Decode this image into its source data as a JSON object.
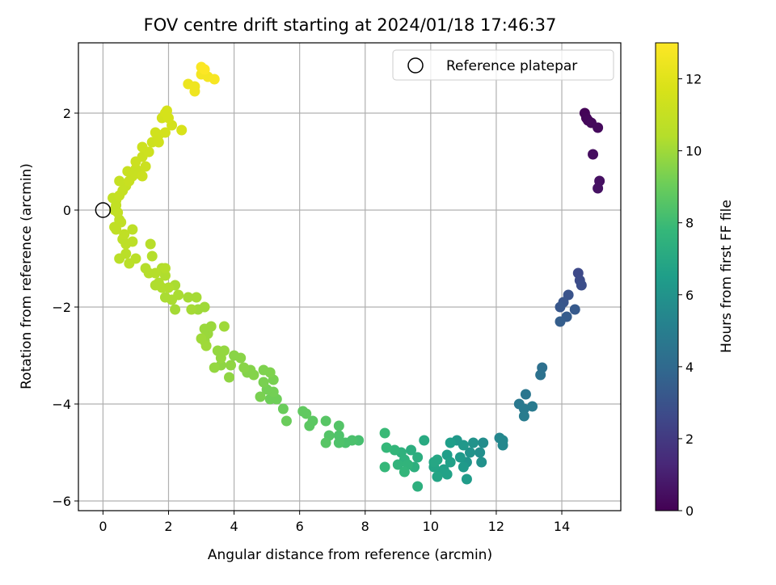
{
  "chart_data": {
    "type": "scatter",
    "title": "FOV centre drift starting at 2024/01/18 17:46:37",
    "xlabel": "Angular distance from reference (arcmin)",
    "ylabel": "Rotation from reference (arcmin)",
    "xlim": [
      -0.75,
      15.8
    ],
    "ylim": [
      -6.2,
      3.45
    ],
    "xticks": [
      0,
      2,
      4,
      6,
      8,
      10,
      12,
      14
    ],
    "yticks": [
      -6,
      -4,
      -2,
      0,
      2
    ],
    "xtick_labels": [
      "0",
      "2",
      "4",
      "6",
      "8",
      "10",
      "12",
      "14"
    ],
    "ytick_labels": [
      "−6",
      "−4",
      "−2",
      "0",
      "2"
    ],
    "grid": true,
    "legend": {
      "position": "top-right",
      "entries": [
        "Reference platepar"
      ]
    },
    "reference_marker": {
      "label": "Reference platepar",
      "x": 0,
      "y": 0,
      "marker": "open-circle"
    },
    "colorbar": {
      "label": "Hours from first FF file",
      "colormap": "viridis",
      "range": [
        0,
        13
      ],
      "ticks": [
        0,
        2,
        4,
        6,
        8,
        10,
        12
      ],
      "tick_labels": [
        "0",
        "2",
        "4",
        "6",
        "8",
        "10",
        "12"
      ]
    },
    "points": [
      {
        "x": 14.7,
        "y": 2.0,
        "t": 0.1
      },
      {
        "x": 14.75,
        "y": 1.9,
        "t": 0.15
      },
      {
        "x": 14.8,
        "y": 1.85,
        "t": 0.2
      },
      {
        "x": 14.9,
        "y": 1.8,
        "t": 0.25
      },
      {
        "x": 15.1,
        "y": 1.7,
        "t": 0.3
      },
      {
        "x": 14.95,
        "y": 1.15,
        "t": 0.4
      },
      {
        "x": 15.15,
        "y": 0.6,
        "t": 0.5
      },
      {
        "x": 15.1,
        "y": 0.45,
        "t": 0.55
      },
      {
        "x": 14.5,
        "y": -1.3,
        "t": 2.6
      },
      {
        "x": 14.55,
        "y": -1.45,
        "t": 2.7
      },
      {
        "x": 14.6,
        "y": -1.55,
        "t": 2.8
      },
      {
        "x": 14.2,
        "y": -1.75,
        "t": 3.0
      },
      {
        "x": 14.05,
        "y": -1.9,
        "t": 3.1
      },
      {
        "x": 13.95,
        "y": -2.0,
        "t": 3.2
      },
      {
        "x": 14.4,
        "y": -2.05,
        "t": 3.3
      },
      {
        "x": 14.15,
        "y": -2.2,
        "t": 3.4
      },
      {
        "x": 13.95,
        "y": -2.3,
        "t": 3.5
      },
      {
        "x": 13.4,
        "y": -3.25,
        "t": 4.3
      },
      {
        "x": 13.35,
        "y": -3.4,
        "t": 4.4
      },
      {
        "x": 12.9,
        "y": -3.8,
        "t": 4.6
      },
      {
        "x": 12.7,
        "y": -4.0,
        "t": 4.7
      },
      {
        "x": 12.85,
        "y": -4.1,
        "t": 4.8
      },
      {
        "x": 13.1,
        "y": -4.05,
        "t": 4.8
      },
      {
        "x": 12.85,
        "y": -4.25,
        "t": 4.9
      },
      {
        "x": 12.1,
        "y": -4.7,
        "t": 5.4
      },
      {
        "x": 12.2,
        "y": -4.75,
        "t": 5.5
      },
      {
        "x": 12.2,
        "y": -4.85,
        "t": 5.5
      },
      {
        "x": 11.6,
        "y": -4.8,
        "t": 5.7
      },
      {
        "x": 11.5,
        "y": -5.0,
        "t": 5.8
      },
      {
        "x": 11.55,
        "y": -5.2,
        "t": 5.9
      },
      {
        "x": 11.3,
        "y": -4.8,
        "t": 6.0
      },
      {
        "x": 11.2,
        "y": -5.0,
        "t": 6.0
      },
      {
        "x": 11.1,
        "y": -5.2,
        "t": 6.1
      },
      {
        "x": 10.8,
        "y": -4.75,
        "t": 6.2
      },
      {
        "x": 11.0,
        "y": -4.85,
        "t": 6.2
      },
      {
        "x": 10.9,
        "y": -5.1,
        "t": 6.3
      },
      {
        "x": 11.0,
        "y": -5.3,
        "t": 6.3
      },
      {
        "x": 11.1,
        "y": -5.55,
        "t": 6.4
      },
      {
        "x": 10.6,
        "y": -4.8,
        "t": 6.5
      },
      {
        "x": 10.5,
        "y": -5.05,
        "t": 6.5
      },
      {
        "x": 10.6,
        "y": -5.2,
        "t": 6.6
      },
      {
        "x": 10.4,
        "y": -5.35,
        "t": 6.6
      },
      {
        "x": 10.5,
        "y": -5.45,
        "t": 6.7
      },
      {
        "x": 10.3,
        "y": -5.4,
        "t": 6.7
      },
      {
        "x": 10.2,
        "y": -5.5,
        "t": 6.8
      },
      {
        "x": 10.1,
        "y": -5.3,
        "t": 6.8
      },
      {
        "x": 10.2,
        "y": -5.15,
        "t": 6.9
      },
      {
        "x": 10.1,
        "y": -5.2,
        "t": 6.9
      },
      {
        "x": 9.8,
        "y": -4.75,
        "t": 7.1
      },
      {
        "x": 9.4,
        "y": -4.95,
        "t": 7.3
      },
      {
        "x": 9.6,
        "y": -5.1,
        "t": 7.3
      },
      {
        "x": 9.5,
        "y": -5.3,
        "t": 7.4
      },
      {
        "x": 9.6,
        "y": -5.7,
        "t": 7.4
      },
      {
        "x": 9.1,
        "y": -5.0,
        "t": 7.5
      },
      {
        "x": 9.2,
        "y": -5.15,
        "t": 7.5
      },
      {
        "x": 9.3,
        "y": -5.25,
        "t": 7.6
      },
      {
        "x": 9.0,
        "y": -5.25,
        "t": 7.6
      },
      {
        "x": 9.2,
        "y": -5.4,
        "t": 7.7
      },
      {
        "x": 8.9,
        "y": -4.95,
        "t": 7.7
      },
      {
        "x": 8.65,
        "y": -4.9,
        "t": 7.8
      },
      {
        "x": 8.6,
        "y": -5.3,
        "t": 7.8
      },
      {
        "x": 8.6,
        "y": -4.6,
        "t": 7.9
      },
      {
        "x": 7.8,
        "y": -4.75,
        "t": 8.2
      },
      {
        "x": 7.6,
        "y": -4.75,
        "t": 8.3
      },
      {
        "x": 7.4,
        "y": -4.8,
        "t": 8.3
      },
      {
        "x": 7.2,
        "y": -4.65,
        "t": 8.4
      },
      {
        "x": 7.2,
        "y": -4.8,
        "t": 8.4
      },
      {
        "x": 7.2,
        "y": -4.45,
        "t": 8.5
      },
      {
        "x": 6.9,
        "y": -4.65,
        "t": 8.5
      },
      {
        "x": 6.8,
        "y": -4.8,
        "t": 8.6
      },
      {
        "x": 6.8,
        "y": -4.35,
        "t": 8.6
      },
      {
        "x": 6.4,
        "y": -4.35,
        "t": 8.7
      },
      {
        "x": 6.3,
        "y": -4.45,
        "t": 8.7
      },
      {
        "x": 6.2,
        "y": -4.2,
        "t": 8.8
      },
      {
        "x": 6.1,
        "y": -4.15,
        "t": 8.8
      },
      {
        "x": 5.6,
        "y": -4.35,
        "t": 9.0
      },
      {
        "x": 5.5,
        "y": -4.1,
        "t": 9.0
      },
      {
        "x": 5.3,
        "y": -3.9,
        "t": 9.1
      },
      {
        "x": 5.1,
        "y": -3.9,
        "t": 9.1
      },
      {
        "x": 5.2,
        "y": -3.75,
        "t": 9.2
      },
      {
        "x": 5.0,
        "y": -3.7,
        "t": 9.2
      },
      {
        "x": 4.9,
        "y": -3.55,
        "t": 9.3
      },
      {
        "x": 4.8,
        "y": -3.85,
        "t": 9.3
      },
      {
        "x": 5.2,
        "y": -3.5,
        "t": 9.3
      },
      {
        "x": 5.1,
        "y": -3.35,
        "t": 9.4
      },
      {
        "x": 4.9,
        "y": -3.3,
        "t": 9.4
      },
      {
        "x": 4.6,
        "y": -3.4,
        "t": 9.5
      },
      {
        "x": 4.5,
        "y": -3.3,
        "t": 9.5
      },
      {
        "x": 4.4,
        "y": -3.35,
        "t": 9.5
      },
      {
        "x": 4.3,
        "y": -3.25,
        "t": 9.6
      },
      {
        "x": 4.2,
        "y": -3.05,
        "t": 9.6
      },
      {
        "x": 4.0,
        "y": -3.0,
        "t": 9.6
      },
      {
        "x": 3.9,
        "y": -3.2,
        "t": 9.7
      },
      {
        "x": 3.85,
        "y": -3.45,
        "t": 9.7
      },
      {
        "x": 3.6,
        "y": -3.2,
        "t": 9.7
      },
      {
        "x": 3.6,
        "y": -3.05,
        "t": 9.8
      },
      {
        "x": 3.7,
        "y": -2.9,
        "t": 9.8
      },
      {
        "x": 3.5,
        "y": -2.9,
        "t": 9.8
      },
      {
        "x": 3.4,
        "y": -3.25,
        "t": 9.8
      },
      {
        "x": 3.1,
        "y": -2.7,
        "t": 9.9
      },
      {
        "x": 3.2,
        "y": -2.55,
        "t": 9.9
      },
      {
        "x": 3.3,
        "y": -2.4,
        "t": 9.9
      },
      {
        "x": 3.1,
        "y": -2.45,
        "t": 9.9
      },
      {
        "x": 3.0,
        "y": -2.65,
        "t": 10.0
      },
      {
        "x": 3.7,
        "y": -2.4,
        "t": 10.0
      },
      {
        "x": 3.1,
        "y": -2.0,
        "t": 10.0
      },
      {
        "x": 2.9,
        "y": -2.05,
        "t": 10.0
      },
      {
        "x": 3.15,
        "y": -2.8,
        "t": 10.0
      },
      {
        "x": 2.7,
        "y": -2.05,
        "t": 10.1
      },
      {
        "x": 2.85,
        "y": -1.8,
        "t": 10.1
      },
      {
        "x": 2.6,
        "y": -1.8,
        "t": 10.1
      },
      {
        "x": 2.2,
        "y": -2.05,
        "t": 10.1
      },
      {
        "x": 2.3,
        "y": -1.75,
        "t": 10.2
      },
      {
        "x": 2.1,
        "y": -1.85,
        "t": 10.2
      },
      {
        "x": 1.9,
        "y": -1.8,
        "t": 10.2
      },
      {
        "x": 2.2,
        "y": -1.55,
        "t": 10.2
      },
      {
        "x": 2.0,
        "y": -1.6,
        "t": 10.3
      },
      {
        "x": 1.8,
        "y": -1.6,
        "t": 10.3
      },
      {
        "x": 1.7,
        "y": -1.5,
        "t": 10.3
      },
      {
        "x": 1.6,
        "y": -1.55,
        "t": 10.3
      },
      {
        "x": 1.9,
        "y": -1.35,
        "t": 10.3
      },
      {
        "x": 1.8,
        "y": -1.2,
        "t": 10.3
      },
      {
        "x": 1.9,
        "y": -1.2,
        "t": 10.4
      },
      {
        "x": 1.6,
        "y": -1.3,
        "t": 10.4
      },
      {
        "x": 1.4,
        "y": -1.3,
        "t": 10.4
      },
      {
        "x": 1.3,
        "y": -1.2,
        "t": 10.4
      },
      {
        "x": 1.5,
        "y": -0.95,
        "t": 10.4
      },
      {
        "x": 1.45,
        "y": -0.7,
        "t": 10.5
      },
      {
        "x": 1.0,
        "y": -1.0,
        "t": 10.6
      },
      {
        "x": 0.8,
        "y": -1.1,
        "t": 10.6
      },
      {
        "x": 0.5,
        "y": -1.0,
        "t": 10.6
      },
      {
        "x": 0.7,
        "y": -0.9,
        "t": 10.6
      },
      {
        "x": 0.7,
        "y": -0.7,
        "t": 10.7
      },
      {
        "x": 0.9,
        "y": -0.65,
        "t": 10.7
      },
      {
        "x": 0.6,
        "y": -0.6,
        "t": 10.7
      },
      {
        "x": 0.9,
        "y": -0.4,
        "t": 10.7
      },
      {
        "x": 0.65,
        "y": -0.5,
        "t": 10.8
      },
      {
        "x": 0.4,
        "y": -0.4,
        "t": 10.8
      },
      {
        "x": 0.35,
        "y": -0.35,
        "t": 10.8
      },
      {
        "x": 0.5,
        "y": -0.2,
        "t": 10.8
      },
      {
        "x": 0.55,
        "y": -0.25,
        "t": 10.8
      },
      {
        "x": 0.45,
        "y": -0.05,
        "t": 10.9
      },
      {
        "x": 0.4,
        "y": 0.1,
        "t": 10.9
      },
      {
        "x": 0.4,
        "y": 0.2,
        "t": 10.9
      },
      {
        "x": 0.3,
        "y": 0.25,
        "t": 10.9
      },
      {
        "x": 0.35,
        "y": 0.0,
        "t": 10.9
      },
      {
        "x": 0.5,
        "y": 0.3,
        "t": 11.0
      },
      {
        "x": 0.6,
        "y": 0.4,
        "t": 11.0
      },
      {
        "x": 0.7,
        "y": 0.5,
        "t": 11.0
      },
      {
        "x": 0.5,
        "y": 0.6,
        "t": 11.0
      },
      {
        "x": 0.8,
        "y": 0.6,
        "t": 11.1
      },
      {
        "x": 0.9,
        "y": 0.7,
        "t": 11.1
      },
      {
        "x": 0.75,
        "y": 0.8,
        "t": 11.1
      },
      {
        "x": 1.0,
        "y": 0.85,
        "t": 11.1
      },
      {
        "x": 1.1,
        "y": 0.75,
        "t": 11.1
      },
      {
        "x": 1.2,
        "y": 0.7,
        "t": 11.2
      },
      {
        "x": 1.0,
        "y": 1.0,
        "t": 11.2
      },
      {
        "x": 1.2,
        "y": 1.1,
        "t": 11.2
      },
      {
        "x": 1.3,
        "y": 0.9,
        "t": 11.2
      },
      {
        "x": 1.4,
        "y": 1.2,
        "t": 11.3
      },
      {
        "x": 1.2,
        "y": 1.3,
        "t": 11.3
      },
      {
        "x": 1.5,
        "y": 1.4,
        "t": 11.3
      },
      {
        "x": 1.7,
        "y": 1.4,
        "t": 11.4
      },
      {
        "x": 1.7,
        "y": 1.55,
        "t": 11.4
      },
      {
        "x": 1.6,
        "y": 1.6,
        "t": 11.4
      },
      {
        "x": 1.9,
        "y": 1.6,
        "t": 11.5
      },
      {
        "x": 2.1,
        "y": 1.75,
        "t": 11.5
      },
      {
        "x": 1.8,
        "y": 1.9,
        "t": 11.5
      },
      {
        "x": 1.9,
        "y": 2.0,
        "t": 11.6
      },
      {
        "x": 1.95,
        "y": 2.05,
        "t": 11.6
      },
      {
        "x": 2.0,
        "y": 1.9,
        "t": 11.6
      },
      {
        "x": 2.4,
        "y": 1.65,
        "t": 11.7
      },
      {
        "x": 2.6,
        "y": 2.6,
        "t": 12.4
      },
      {
        "x": 2.8,
        "y": 2.55,
        "t": 12.5
      },
      {
        "x": 2.8,
        "y": 2.45,
        "t": 12.5
      },
      {
        "x": 3.0,
        "y": 2.8,
        "t": 12.7
      },
      {
        "x": 3.2,
        "y": 2.75,
        "t": 12.7
      },
      {
        "x": 3.4,
        "y": 2.7,
        "t": 12.8
      },
      {
        "x": 3.0,
        "y": 2.95,
        "t": 12.9
      },
      {
        "x": 3.1,
        "y": 2.9,
        "t": 12.95
      }
    ]
  }
}
